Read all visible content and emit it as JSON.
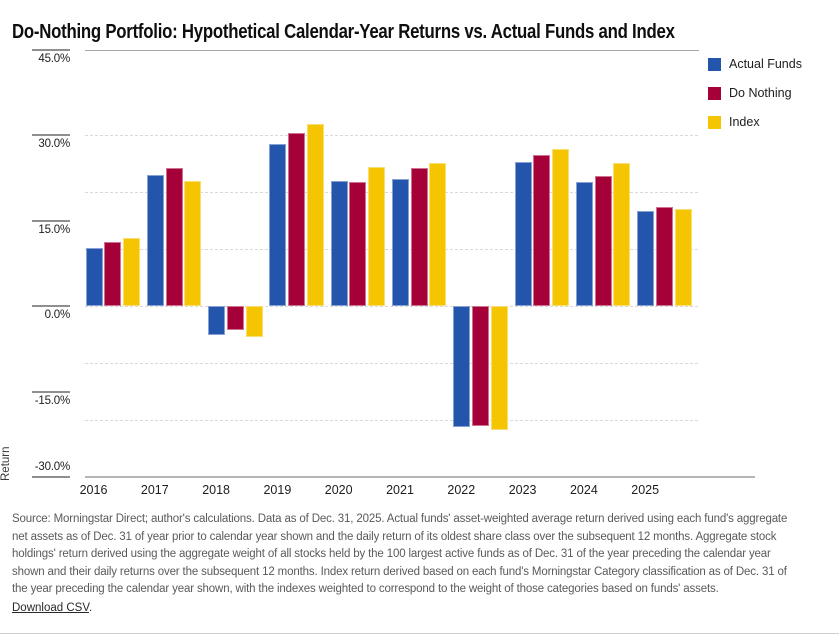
{
  "title": "Do-Nothing Portfolio: Hypothetical Calendar-Year Returns vs. Actual Funds and Index",
  "legend": {
    "items": [
      {
        "label": "Actual Funds",
        "color": "#2355ad"
      },
      {
        "label": "Do Nothing",
        "color": "#a50038"
      },
      {
        "label": "Index",
        "color": "#f4c500"
      }
    ]
  },
  "chart_data": {
    "type": "bar",
    "title": "Do-Nothing Portfolio: Hypothetical Calendar-Year Returns vs. Actual Funds and Index",
    "categories": [
      "2016",
      "2017",
      "2018",
      "2019",
      "2020",
      "2021",
      "2022",
      "2023",
      "2024",
      "2025"
    ],
    "series": [
      {
        "name": "Actual Funds",
        "color": "#2355ad",
        "values": [
          10.3,
          23.0,
          -5.1,
          28.5,
          22.0,
          22.4,
          -21.2,
          25.3,
          21.9,
          16.7
        ]
      },
      {
        "name": "Do Nothing",
        "color": "#a50038",
        "values": [
          11.3,
          24.3,
          -4.2,
          30.5,
          21.8,
          24.2,
          -21.0,
          26.6,
          22.9,
          17.5
        ]
      },
      {
        "name": "Index",
        "color": "#f4c500",
        "values": [
          11.9,
          22.0,
          -5.4,
          32.0,
          24.4,
          25.2,
          -21.8,
          27.6,
          25.2,
          17.0
        ]
      }
    ],
    "xlabel": "",
    "ylabel": "Return",
    "ylim": [
      -30,
      45
    ],
    "y_ticks": [
      45,
      30,
      15,
      0,
      -15,
      -30
    ],
    "y_tick_labels": [
      "45.0%",
      "30.0%",
      "15.0%",
      "0.0%",
      "-15.0%",
      "-30.0%"
    ],
    "dotted_gridlines": [
      30,
      20,
      10,
      0,
      -10,
      -20
    ],
    "grid": "horizontal dashed lines every 10%",
    "legend_position": "top-right"
  },
  "footer": {
    "lines": [
      "Source: Morningstar Direct; author's calculations. Data as of Dec. 31, 2025. Actual funds' asset-weighted average return derived using each fund's aggregate",
      "net assets as of Dec. 31 of year prior to calendar year shown and the daily return of its oldest share class over the subsequent 12 months. Aggregate stock",
      "holdings' return derived using the aggregate weight of all stocks held by the 100 largest active funds as of Dec. 31 of the year preceding the calendar year",
      "shown and their daily returns over the subsequent 12 months. Index return derived based on each fund's Morningstar Category classification as of Dec. 31 of",
      "the year preceding the calendar year shown, with the indexes weighted to correspond to the weight of those categories based on funds' assets."
    ],
    "download_label": "Download CSV",
    "download_suffix": "."
  }
}
